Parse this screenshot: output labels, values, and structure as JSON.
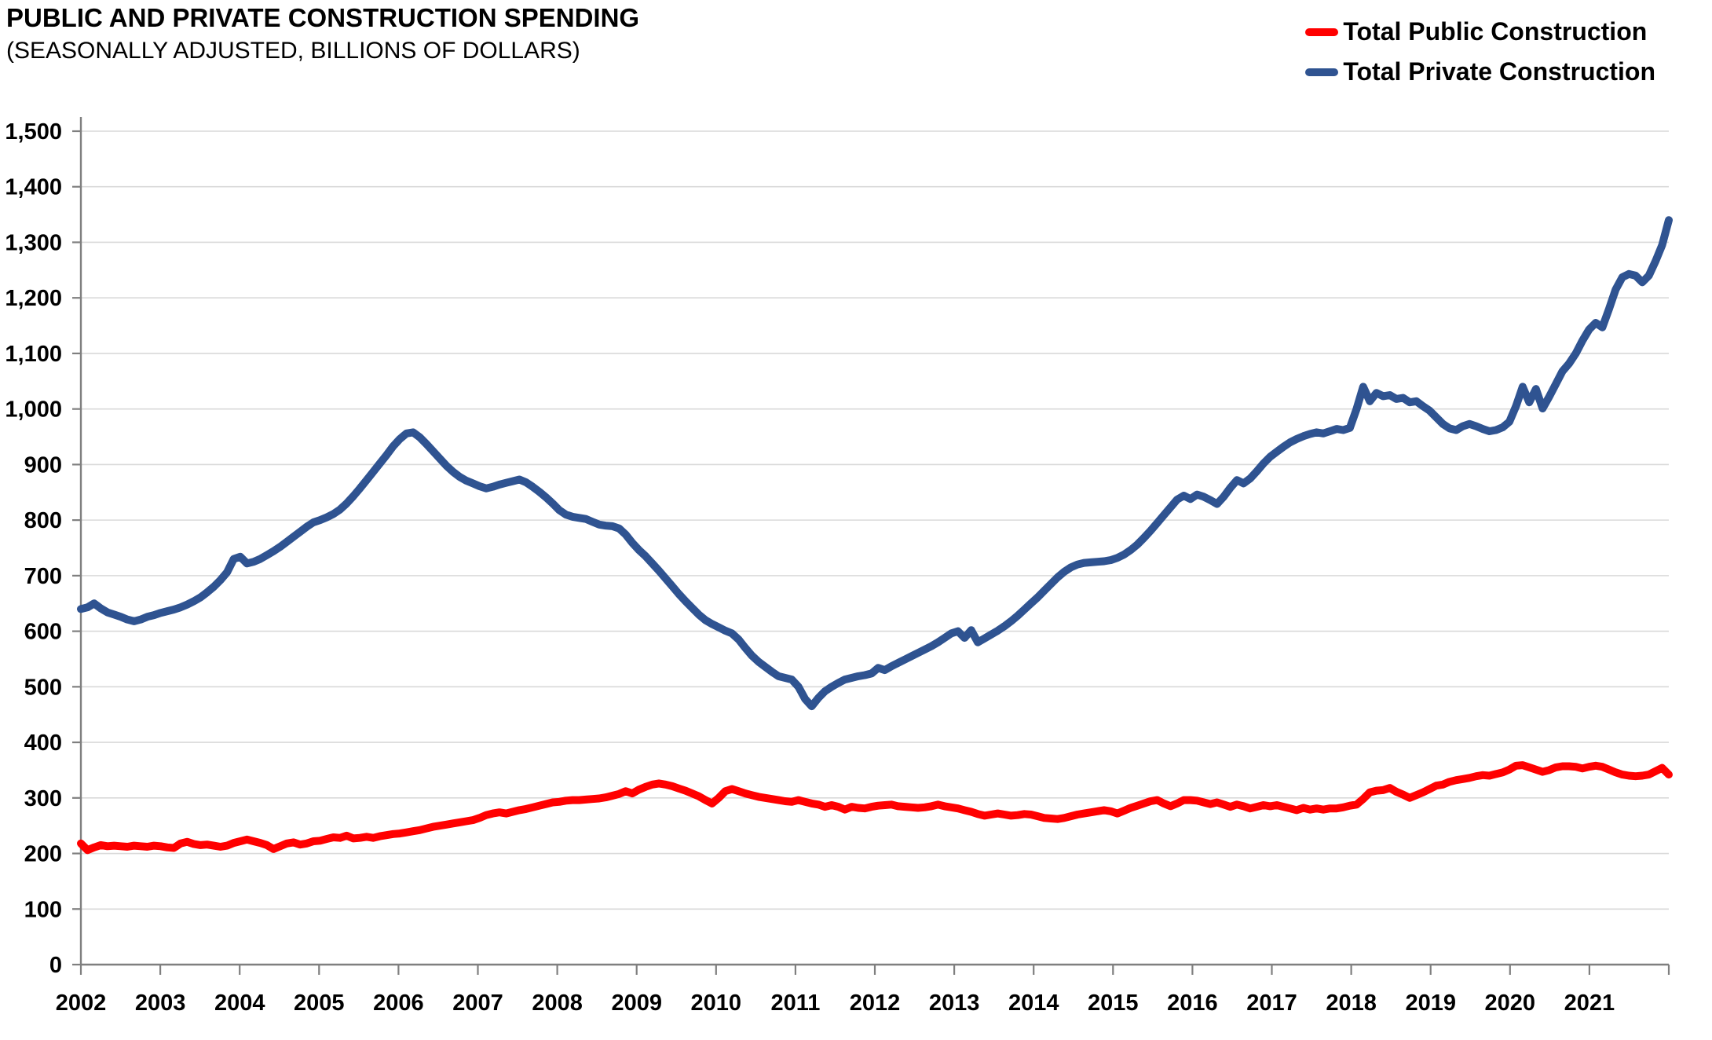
{
  "title": "PUBLIC AND PRIVATE CONSTRUCTION SPENDING",
  "subtitle": "(SEASONALLY ADJUSTED, BILLIONS OF DOLLARS)",
  "legend": [
    {
      "label": "Total Public Construction",
      "color": "#FF0000"
    },
    {
      "label": "Total Private Construction",
      "color": "#2F5391"
    }
  ],
  "colors": {
    "public_line": "#FF0000",
    "private_line": "#2F5391",
    "gridline": "#D9D9D9",
    "axis": "#7F7F7F",
    "text": "#000000",
    "background": "#FFFFFF"
  },
  "axes": {
    "y_tick_labels": [
      "0",
      "100",
      "200",
      "300",
      "400",
      "500",
      "600",
      "700",
      "800",
      "900",
      "1,000",
      "1,100",
      "1,200",
      "1,300",
      "1,400",
      "1,500"
    ],
    "x_tick_labels": [
      "2002",
      "2003",
      "2004",
      "2005",
      "2006",
      "2007",
      "2008",
      "2009",
      "2010",
      "2011",
      "2012",
      "2013",
      "2014",
      "2015",
      "2016",
      "2017",
      "2018",
      "2019",
      "2020",
      "2021"
    ]
  },
  "chart_data": {
    "type": "line",
    "title": "PUBLIC AND PRIVATE CONSTRUCTION SPENDING",
    "subtitle": "(SEASONALLY ADJUSTED, BILLIONS OF DOLLARS)",
    "xlabel": "",
    "ylabel": "",
    "ylim": [
      0,
      1500
    ],
    "ytick_step": 100,
    "grid": "horizontal",
    "legend_position": "top-right",
    "x_frequency": "monthly",
    "x_start": "2002-01",
    "x_end": "2021-12",
    "x_tick_labels": [
      "2002",
      "2003",
      "2004",
      "2005",
      "2006",
      "2007",
      "2008",
      "2009",
      "2010",
      "2011",
      "2012",
      "2013",
      "2014",
      "2015",
      "2016",
      "2017",
      "2018",
      "2019",
      "2020",
      "2021"
    ],
    "series": [
      {
        "name": "Total Public Construction",
        "color": "#FF0000",
        "values": [
          218,
          206,
          211,
          215,
          213,
          214,
          213,
          212,
          214,
          213,
          212,
          214,
          213,
          211,
          210,
          218,
          221,
          217,
          215,
          216,
          214,
          212,
          214,
          219,
          222,
          225,
          222,
          219,
          215,
          208,
          213,
          218,
          220,
          216,
          218,
          222,
          223,
          226,
          229,
          228,
          232,
          227,
          228,
          230,
          228,
          231,
          233,
          235,
          236,
          238,
          240,
          242,
          245,
          248,
          250,
          252,
          254,
          256,
          258,
          260,
          264,
          269,
          272,
          274,
          272,
          275,
          278,
          280,
          283,
          286,
          289,
          292,
          293,
          295,
          296,
          296,
          297,
          298,
          299,
          301,
          304,
          307,
          312,
          308,
          315,
          320,
          324,
          326,
          324,
          321,
          317,
          313,
          308,
          303,
          296,
          290,
          300,
          312,
          316,
          312,
          308,
          305,
          302,
          300,
          298,
          296,
          294,
          293,
          296,
          293,
          290,
          288,
          284,
          287,
          284,
          279,
          284,
          282,
          281,
          284,
          286,
          287,
          288,
          285,
          284,
          283,
          282,
          283,
          285,
          288,
          285,
          283,
          281,
          278,
          275,
          271,
          268,
          270,
          272,
          270,
          268,
          269,
          271,
          270,
          267,
          264,
          263,
          262,
          264,
          267,
          270,
          272,
          274,
          276,
          278,
          276,
          272,
          277,
          282,
          286,
          290,
          294,
          296,
          290,
          285,
          290,
          296,
          296,
          295,
          292,
          289,
          292,
          288,
          284,
          288,
          285,
          281,
          284,
          287,
          285,
          287,
          284,
          281,
          278,
          282,
          279,
          281,
          279,
          281,
          281,
          283,
          286,
          288,
          298,
          310,
          313,
          314,
          318,
          311,
          306,
          300,
          305,
          310,
          316,
          322,
          324,
          329,
          332,
          334,
          336,
          339,
          341,
          340,
          343,
          346,
          351,
          358,
          359,
          355,
          351,
          347,
          350,
          355,
          357,
          357,
          356,
          353,
          356,
          358,
          356,
          351,
          346,
          342,
          340,
          339,
          340,
          342,
          348,
          354,
          342
        ]
      },
      {
        "name": "Total Private Construction",
        "color": "#2F5391",
        "values": [
          640,
          643,
          650,
          641,
          634,
          630,
          626,
          621,
          618,
          621,
          626,
          629,
          633,
          636,
          639,
          643,
          648,
          654,
          661,
          670,
          680,
          692,
          706,
          730,
          734,
          722,
          725,
          730,
          737,
          744,
          752,
          761,
          770,
          779,
          788,
          796,
          800,
          805,
          811,
          819,
          830,
          843,
          857,
          872,
          887,
          902,
          917,
          933,
          946,
          956,
          958,
          949,
          937,
          924,
          911,
          898,
          887,
          878,
          871,
          866,
          861,
          857,
          860,
          864,
          867,
          870,
          873,
          868,
          860,
          851,
          841,
          830,
          818,
          810,
          806,
          804,
          802,
          797,
          792,
          790,
          789,
          785,
          774,
          759,
          746,
          735,
          722,
          709,
          695,
          681,
          667,
          654,
          642,
          630,
          620,
          613,
          607,
          601,
          596,
          585,
          570,
          556,
          545,
          536,
          527,
          519,
          516,
          513,
          500,
          478,
          465,
          480,
          492,
          500,
          507,
          513,
          516,
          519,
          521,
          524,
          534,
          530,
          537,
          543,
          549,
          555,
          561,
          567,
          573,
          580,
          588,
          596,
          600,
          588,
          602,
          580,
          587,
          594,
          601,
          609,
          618,
          628,
          639,
          650,
          661,
          673,
          685,
          697,
          707,
          715,
          720,
          723,
          724,
          725,
          726,
          728,
          732,
          738,
          746,
          756,
          768,
          781,
          795,
          809,
          823,
          837,
          844,
          838,
          846,
          842,
          836,
          829,
          842,
          858,
          872,
          866,
          875,
          888,
          902,
          914,
          923,
          932,
          940,
          946,
          951,
          955,
          958,
          956,
          960,
          964,
          962,
          966,
          1000,
          1040,
          1014,
          1029,
          1023,
          1025,
          1018,
          1020,
          1012,
          1014,
          1005,
          997,
          985,
          973,
          965,
          962,
          969,
          973,
          969,
          964,
          960,
          962,
          967,
          977,
          1005,
          1040,
          1012,
          1036,
          1001,
          1022,
          1045,
          1068,
          1082,
          1100,
          1123,
          1143,
          1155,
          1147,
          1180,
          1215,
          1237,
          1243,
          1240,
          1228,
          1240,
          1266,
          1295,
          1340
        ]
      }
    ]
  }
}
